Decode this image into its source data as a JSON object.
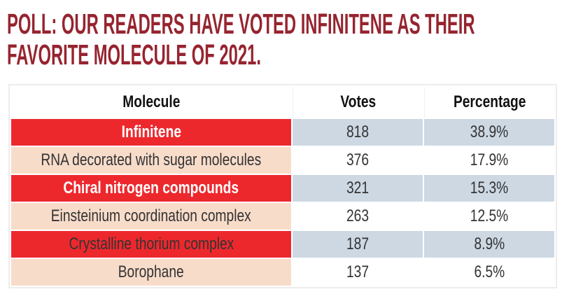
{
  "colors": {
    "page_bg": "#ffffff",
    "title": "#96242f",
    "highlight_red": "#ed282d",
    "votes_highlight": "#cdd8e3",
    "row_peach": "#f8dcca",
    "table_border": "#ededed",
    "header_text": "#111111",
    "cell_text": "#333333",
    "winner_text": "#ffffff"
  },
  "title": {
    "line1": "POLL: OUR READERS HAVE VOTED INFINITENE AS THEIR",
    "line2": "FAVORITE MOLECULE OF 2021."
  },
  "table": {
    "headers": [
      "Molecule",
      "Votes",
      "Percentage"
    ],
    "rows": [
      {
        "molecule": "Infinitene",
        "votes": "818",
        "percentage": "38.9%",
        "highlighted": true,
        "emphasis": true
      },
      {
        "molecule": "RNA decorated with sugar molecules",
        "votes": "376",
        "percentage": "17.9%",
        "highlighted": false,
        "emphasis": false
      },
      {
        "molecule": "Chiral nitrogen compounds",
        "votes": "321",
        "percentage": "15.3%",
        "highlighted": true,
        "emphasis": true
      },
      {
        "molecule": "Einsteinium coordination complex",
        "votes": "263",
        "percentage": "12.5%",
        "highlighted": false,
        "emphasis": false
      },
      {
        "molecule": "Crystalline thorium complex",
        "votes": "187",
        "percentage": "8.9%",
        "highlighted": true,
        "emphasis": false
      },
      {
        "molecule": "Borophane",
        "votes": "137",
        "percentage": "6.5%",
        "highlighted": false,
        "emphasis": false
      }
    ]
  },
  "chart_data": {
    "type": "table",
    "title": "POLL: OUR READERS HAVE VOTED INFINITENE AS THEIR FAVORITE MOLECULE OF 2021.",
    "columns": [
      "Molecule",
      "Votes",
      "Percentage"
    ],
    "rows": [
      [
        "Infinitene",
        818,
        "38.9%"
      ],
      [
        "RNA decorated with sugar molecules",
        376,
        "17.9%"
      ],
      [
        "Chiral nitrogen compounds",
        321,
        "15.3%"
      ],
      [
        "Einsteinium coordination complex",
        263,
        "12.5%"
      ],
      [
        "Crystalline thorium complex",
        187,
        "8.9%"
      ],
      [
        "Borophane",
        137,
        "6.5%"
      ]
    ]
  }
}
